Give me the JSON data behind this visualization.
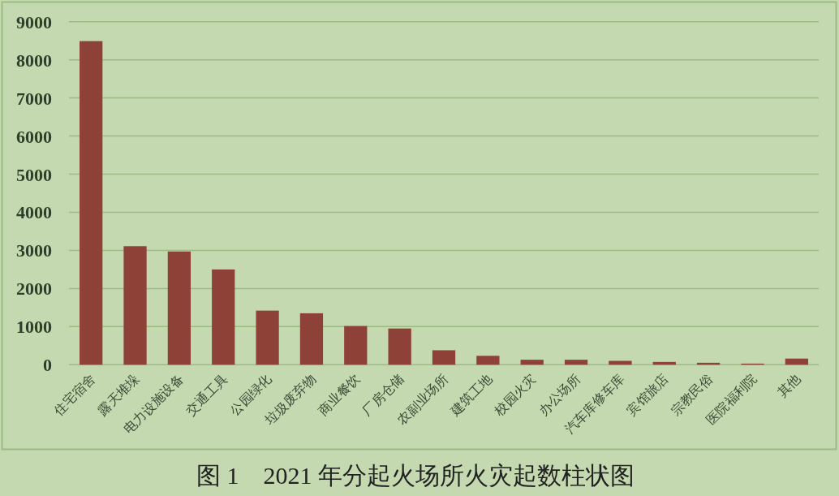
{
  "chart_data": {
    "type": "bar",
    "title": "图 1　2021 年分起火场所火灾起数柱状图",
    "categories": [
      "住宅宿舍",
      "露天堆垛",
      "电力设施设备",
      "交通工具",
      "公园绿化",
      "垃圾废弃物",
      "商业餐饮",
      "厂房仓储",
      "农副业场所",
      "建筑工地",
      "校园火灾",
      "办公场所",
      "汽车库修车库",
      "宾馆旅店",
      "宗教民俗",
      "医院福利院",
      "其他"
    ],
    "values": [
      8490,
      3110,
      2970,
      2500,
      1420,
      1350,
      1015,
      950,
      380,
      234,
      131,
      131,
      102,
      73,
      51,
      29,
      161
    ],
    "color": "#8e4136",
    "ylim": [
      0,
      9000
    ],
    "yticks": [
      0,
      1000,
      2000,
      3000,
      4000,
      5000,
      6000,
      7000,
      8000,
      9000
    ],
    "grid": "y"
  }
}
